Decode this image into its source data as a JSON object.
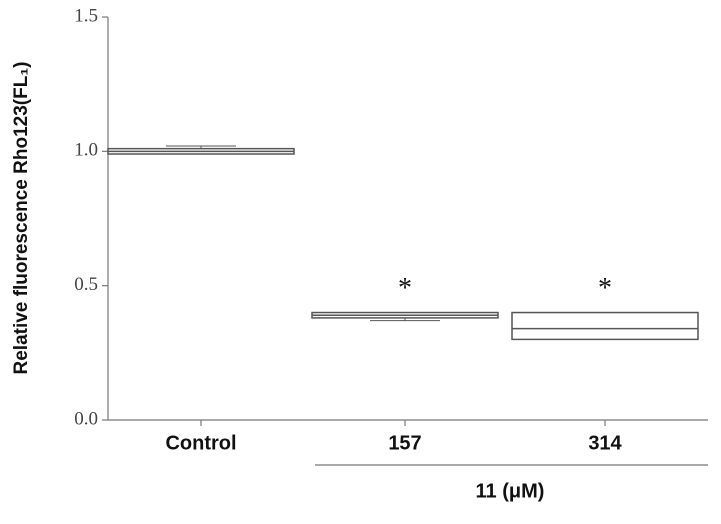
{
  "chart_data": {
    "type": "box",
    "y_label": "Relative fluorescence Rho123(FL₁)",
    "categories": [
      "Control",
      "157",
      "314"
    ],
    "group_label": "11 (μM)",
    "boxes": [
      {
        "whisker_low": 0.99,
        "q1": 0.99,
        "median": 1.0,
        "q3": 1.01,
        "whisker_high": 1.02
      },
      {
        "whisker_low": 0.37,
        "q1": 0.38,
        "median": 0.39,
        "q3": 0.4,
        "whisker_high": 0.4
      },
      {
        "whisker_low": 0.3,
        "q1": 0.3,
        "median": 0.34,
        "q3": 0.4,
        "whisker_high": 0.4
      }
    ],
    "significance": [
      null,
      "*",
      "*"
    ],
    "color": "#555555",
    "ylim": [
      0,
      1.5
    ],
    "yticks": [
      {
        "value": 0,
        "label": "0.0"
      },
      {
        "value": 0.5,
        "label": "0.5"
      },
      {
        "value": 1,
        "label": "1.0"
      },
      {
        "value": 1.5,
        "label": "1.5"
      }
    ]
  }
}
